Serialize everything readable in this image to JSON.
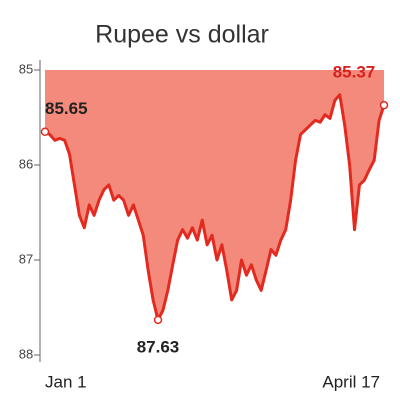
{
  "chart_data": {
    "type": "line",
    "title": "Rupee vs dollar",
    "categories": [
      "Jan 1",
      null,
      null,
      null,
      null,
      null,
      null,
      null,
      null,
      null,
      null,
      null,
      null,
      null,
      null,
      null,
      null,
      null,
      null,
      null,
      null,
      null,
      null,
      null,
      null,
      null,
      null,
      null,
      null,
      null,
      null,
      null,
      null,
      null,
      null,
      null,
      null,
      null,
      null,
      null,
      null,
      null,
      null,
      null,
      null,
      null,
      null,
      null,
      null,
      null,
      null,
      null,
      null,
      null,
      null,
      null,
      null,
      null,
      null,
      null,
      null,
      null,
      null,
      null,
      null,
      null,
      null,
      null,
      null,
      "April 17"
    ],
    "values": [
      85.65,
      85.68,
      85.74,
      85.72,
      85.74,
      85.89,
      86.21,
      86.53,
      86.66,
      86.42,
      86.53,
      86.37,
      86.26,
      86.21,
      86.37,
      86.32,
      86.37,
      86.53,
      86.42,
      86.58,
      86.74,
      87.11,
      87.42,
      87.63,
      87.53,
      87.32,
      87.05,
      86.79,
      86.68,
      86.77,
      86.66,
      86.79,
      86.58,
      86.84,
      86.74,
      87.0,
      86.84,
      87.11,
      87.42,
      87.32,
      87.0,
      87.16,
      87.05,
      87.21,
      87.32,
      87.11,
      86.89,
      86.95,
      86.79,
      86.68,
      86.37,
      85.95,
      85.68,
      85.63,
      85.58,
      85.53,
      85.55,
      85.47,
      85.51,
      85.32,
      85.26,
      85.58,
      86.0,
      86.68,
      86.21,
      86.16,
      86.05,
      85.95,
      85.53,
      85.37
    ],
    "color": "#e32a20",
    "fill_color": "#f48a7b",
    "ylim": [
      85,
      88
    ],
    "yticks": [
      85,
      86,
      87,
      88
    ],
    "invert_y": true,
    "data_labels": true
  }
}
